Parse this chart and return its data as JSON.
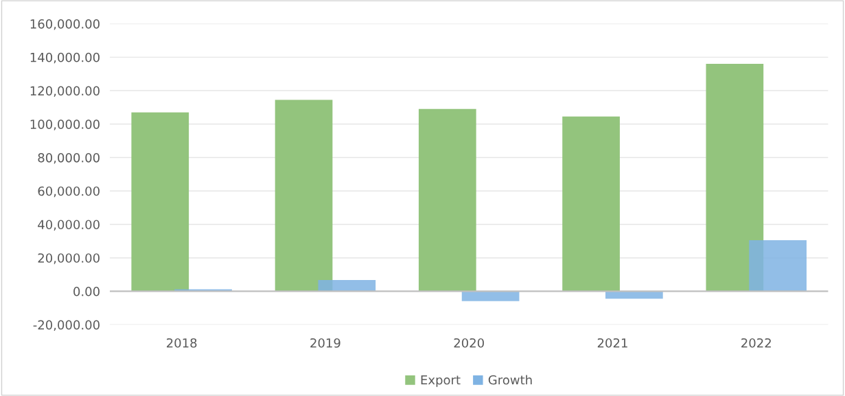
{
  "chart_data": {
    "type": "bar",
    "categories": [
      "2018",
      "2019",
      "2020",
      "2021",
      "2022"
    ],
    "series": [
      {
        "name": "Export",
        "color": "#93c47d",
        "values": [
          107000,
          114500,
          109000,
          104500,
          136000
        ]
      },
      {
        "name": "Growth",
        "color": "#7fb3e3",
        "values": [
          1200,
          6700,
          -5900,
          -4400,
          30500
        ]
      }
    ],
    "ylim": [
      -20000,
      160000
    ],
    "yticks": [
      {
        "value": -20000,
        "label": "-20,000.00"
      },
      {
        "value": 0,
        "label": "0.00"
      },
      {
        "value": 20000,
        "label": "20,000.00"
      },
      {
        "value": 40000,
        "label": "40,000.00"
      },
      {
        "value": 60000,
        "label": "60,000.00"
      },
      {
        "value": 80000,
        "label": "80,000.00"
      },
      {
        "value": 100000,
        "label": "100,000.00"
      },
      {
        "value": 120000,
        "label": "120,000.00"
      },
      {
        "value": 140000,
        "label": "140,000.00"
      },
      {
        "value": 160000,
        "label": "160,000.00"
      }
    ],
    "grid": "y",
    "legend": "bottom"
  }
}
